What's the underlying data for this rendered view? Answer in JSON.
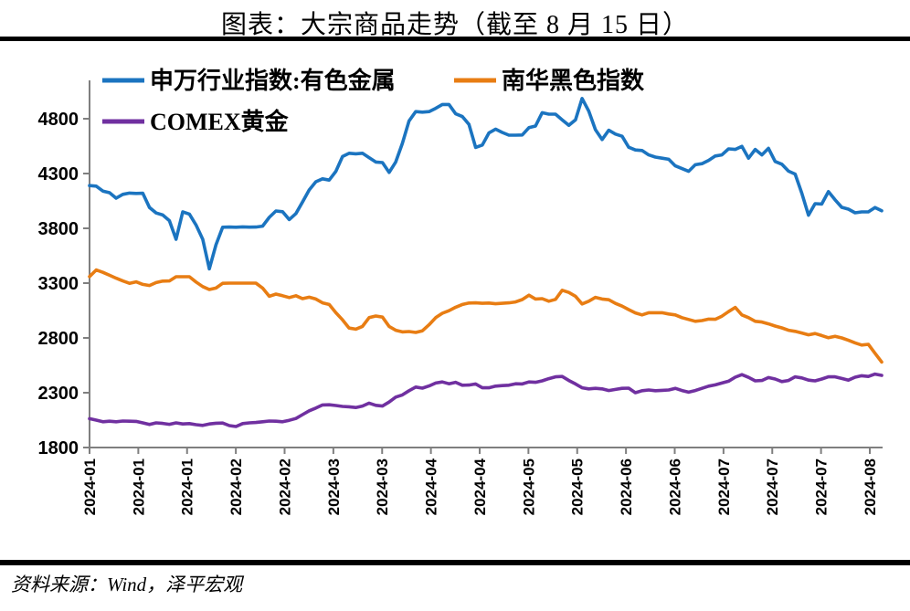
{
  "title": "图表：大宗商品走势（截至 8 月 15 日）",
  "source_note": "资料来源：Wind，泽平宏观",
  "colors": {
    "series_blue": "#1B74C0",
    "series_orange": "#E87D13",
    "series_purple": "#7030A0",
    "axis": "#7F7F7F",
    "text": "#000000",
    "rule": "#000000"
  },
  "chart_data": {
    "type": "line",
    "title": "大宗商品走势（截至 8 月 15 日）",
    "grid": false,
    "legend_position": "top-left-inside",
    "x_axis": {
      "unit": "date",
      "x_range": [
        "2024-01",
        "2024-08"
      ],
      "tick_labels": [
        "2024-01",
        "2024-01",
        "2024-01",
        "2024-02",
        "2024-02",
        "2024-03",
        "2024-03",
        "2024-04",
        "2024-04",
        "2024-05",
        "2024-05",
        "2024-06",
        "2024-06",
        "2024-07",
        "2024-07",
        "2024-07",
        "2024-08"
      ]
    },
    "y_axis": {
      "ticks": [
        1800,
        2300,
        2800,
        3300,
        3800,
        4300,
        4800
      ],
      "range": [
        1800,
        5150
      ]
    },
    "series": [
      {
        "id": "sw-nonferrous",
        "name": "申万行业指数:有色金属",
        "color": "#1B74C0",
        "values": [
          4190,
          4185,
          4140,
          4125,
          4075,
          4110,
          4122,
          4118,
          4120,
          3990,
          3940,
          3922,
          3870,
          3700,
          3950,
          3930,
          3830,
          3700,
          3430,
          3650,
          3810,
          3812,
          3810,
          3813,
          3811,
          3812,
          3820,
          3900,
          3958,
          3952,
          3880,
          3935,
          4040,
          4150,
          4225,
          4252,
          4240,
          4320,
          4455,
          4485,
          4480,
          4485,
          4445,
          4405,
          4400,
          4310,
          4405,
          4575,
          4780,
          4865,
          4860,
          4865,
          4895,
          4930,
          4930,
          4845,
          4820,
          4748,
          4538,
          4560,
          4670,
          4705,
          4675,
          4650,
          4650,
          4652,
          4718,
          4733,
          4855,
          4842,
          4842,
          4790,
          4740,
          4790,
          4985,
          4870,
          4700,
          4610,
          4695,
          4660,
          4640,
          4540,
          4515,
          4510,
          4470,
          4450,
          4440,
          4430,
          4370,
          4345,
          4320,
          4380,
          4390,
          4420,
          4460,
          4470,
          4525,
          4520,
          4548,
          4440,
          4520,
          4470,
          4530,
          4410,
          4385,
          4322,
          4295,
          4120,
          3920,
          4025,
          4022,
          4135,
          4060,
          3992,
          3975,
          3942,
          3950,
          3950,
          3990,
          3960
        ]
      },
      {
        "id": "nanhua-black",
        "name": "南华黑色指数",
        "color": "#E87D13",
        "values": [
          3360,
          3420,
          3398,
          3372,
          3345,
          3320,
          3298,
          3312,
          3288,
          3278,
          3305,
          3318,
          3320,
          3358,
          3358,
          3358,
          3310,
          3268,
          3242,
          3255,
          3298,
          3300,
          3300,
          3300,
          3300,
          3300,
          3255,
          3180,
          3200,
          3185,
          3168,
          3185,
          3158,
          3172,
          3155,
          3120,
          3105,
          3030,
          2965,
          2890,
          2880,
          2905,
          2985,
          3000,
          2990,
          2905,
          2870,
          2855,
          2858,
          2850,
          2865,
          2920,
          2985,
          3025,
          3048,
          3080,
          3105,
          3118,
          3120,
          3116,
          3118,
          3112,
          3116,
          3120,
          3128,
          3150,
          3190,
          3155,
          3158,
          3135,
          3152,
          3235,
          3215,
          3180,
          3110,
          3135,
          3170,
          3155,
          3148,
          3115,
          3090,
          3058,
          3028,
          3010,
          3030,
          3030,
          3030,
          3018,
          3010,
          2985,
          2968,
          2952,
          2958,
          2972,
          2970,
          2998,
          3040,
          3078,
          3010,
          2985,
          2952,
          2945,
          2928,
          2908,
          2892,
          2870,
          2860,
          2845,
          2828,
          2840,
          2822,
          2802,
          2815,
          2800,
          2778,
          2755,
          2735,
          2742,
          2660,
          2580
        ]
      },
      {
        "id": "comex-gold",
        "name": "COMEX黄金",
        "color": "#7030A0",
        "values": [
          2063,
          2050,
          2035,
          2040,
          2035,
          2042,
          2040,
          2038,
          2025,
          2010,
          2025,
          2020,
          2012,
          2025,
          2015,
          2018,
          2008,
          2002,
          2015,
          2022,
          2023,
          2000,
          1992,
          2018,
          2025,
          2028,
          2035,
          2042,
          2040,
          2035,
          2048,
          2065,
          2100,
          2135,
          2160,
          2188,
          2190,
          2183,
          2175,
          2172,
          2165,
          2178,
          2205,
          2185,
          2178,
          2215,
          2260,
          2280,
          2318,
          2352,
          2342,
          2362,
          2388,
          2398,
          2382,
          2395,
          2368,
          2370,
          2380,
          2345,
          2345,
          2360,
          2365,
          2368,
          2382,
          2380,
          2398,
          2395,
          2408,
          2428,
          2445,
          2448,
          2412,
          2380,
          2345,
          2335,
          2340,
          2335,
          2320,
          2330,
          2340,
          2342,
          2300,
          2318,
          2325,
          2318,
          2322,
          2325,
          2340,
          2320,
          2305,
          2320,
          2340,
          2360,
          2372,
          2388,
          2405,
          2442,
          2465,
          2440,
          2408,
          2412,
          2438,
          2425,
          2402,
          2412,
          2445,
          2435,
          2415,
          2408,
          2425,
          2445,
          2445,
          2430,
          2415,
          2442,
          2455,
          2448,
          2470,
          2458
        ]
      }
    ]
  }
}
